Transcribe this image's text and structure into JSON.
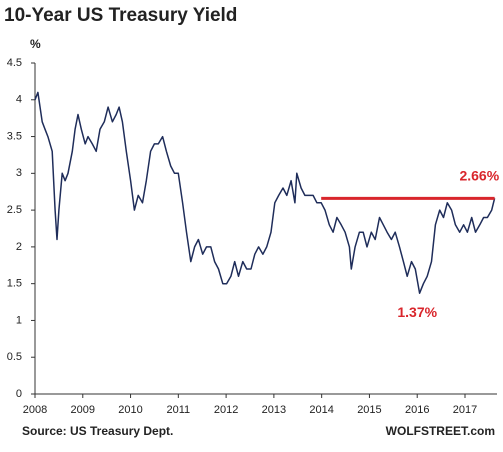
{
  "chart_data": {
    "type": "line",
    "title": "10-Year US Treasury Yield",
    "y_label": "%",
    "source": "Source: US Treasury Dept.",
    "credit": "WOLFSTREET.com",
    "series": [
      {
        "name": "10-Year US Treasury Yield",
        "color": "#1f2d5a",
        "x": [
          2008.0,
          2008.06,
          2008.15,
          2008.21,
          2008.27,
          2008.36,
          2008.42,
          2008.46,
          2008.5,
          2008.57,
          2008.63,
          2008.69,
          2008.78,
          2008.84,
          2008.9,
          2008.97,
          2009.05,
          2009.11,
          2009.2,
          2009.28,
          2009.36,
          2009.45,
          2009.53,
          2009.62,
          2009.7,
          2009.76,
          2009.83,
          2009.91,
          2010.0,
          2010.08,
          2010.16,
          2010.25,
          2010.33,
          2010.42,
          2010.5,
          2010.58,
          2010.67,
          2010.75,
          2010.84,
          2010.92,
          2011.0,
          2011.09,
          2011.17,
          2011.26,
          2011.34,
          2011.42,
          2011.51,
          2011.59,
          2011.68,
          2011.76,
          2011.84,
          2011.93,
          2012.01,
          2012.1,
          2012.18,
          2012.26,
          2012.35,
          2012.43,
          2012.52,
          2012.6,
          2012.68,
          2012.77,
          2012.85,
          2012.94,
          2013.02,
          2013.1,
          2013.19,
          2013.27,
          2013.36,
          2013.44,
          2013.48,
          2013.57,
          2013.65,
          2013.74,
          2013.82,
          2013.9,
          2013.99,
          2014.07,
          2014.16,
          2014.24,
          2014.32,
          2014.41,
          2014.49,
          2014.58,
          2014.62,
          2014.7,
          2014.79,
          2014.87,
          2014.95,
          2015.04,
          2015.12,
          2015.21,
          2015.29,
          2015.37,
          2015.46,
          2015.54,
          2015.63,
          2015.71,
          2015.79,
          2015.88,
          2015.96,
          2016.05,
          2016.13,
          2016.21,
          2016.3,
          2016.38,
          2016.47,
          2016.55,
          2016.63,
          2016.72,
          2016.8,
          2016.89,
          2016.97,
          2017.05,
          2017.14,
          2017.22,
          2017.31,
          2017.39,
          2017.47,
          2017.56,
          2017.62
        ],
        "values": [
          4.0,
          4.1,
          3.7,
          3.6,
          3.5,
          3.3,
          2.5,
          2.1,
          2.5,
          3.0,
          2.9,
          3.0,
          3.3,
          3.6,
          3.8,
          3.6,
          3.4,
          3.5,
          3.4,
          3.3,
          3.6,
          3.7,
          3.9,
          3.7,
          3.8,
          3.9,
          3.7,
          3.3,
          2.9,
          2.5,
          2.7,
          2.6,
          2.9,
          3.3,
          3.4,
          3.4,
          3.5,
          3.3,
          3.1,
          3.0,
          3.0,
          2.6,
          2.2,
          1.8,
          2.0,
          2.1,
          1.9,
          2.0,
          2.0,
          1.8,
          1.7,
          1.5,
          1.5,
          1.6,
          1.8,
          1.6,
          1.8,
          1.7,
          1.7,
          1.9,
          2.0,
          1.9,
          2.0,
          2.2,
          2.6,
          2.7,
          2.8,
          2.7,
          2.9,
          2.6,
          3.0,
          2.8,
          2.7,
          2.7,
          2.7,
          2.6,
          2.6,
          2.5,
          2.3,
          2.2,
          2.4,
          2.3,
          2.2,
          2.0,
          1.7,
          2.0,
          2.2,
          2.2,
          2.0,
          2.2,
          2.1,
          2.4,
          2.3,
          2.2,
          2.1,
          2.2,
          2.0,
          1.8,
          1.6,
          1.8,
          1.7,
          1.37,
          1.5,
          1.6,
          1.8,
          2.3,
          2.5,
          2.4,
          2.6,
          2.5,
          2.3,
          2.2,
          2.3,
          2.2,
          2.4,
          2.2,
          2.3,
          2.4,
          2.4,
          2.5,
          2.66
        ]
      }
    ],
    "hline": {
      "y": 2.66,
      "x": [
        2013.99,
        2017.62
      ],
      "color": "#d9262c"
    },
    "annotations": [
      {
        "text": "2.66%",
        "x": 2017.3,
        "y": 2.95,
        "color": "#d9262c"
      },
      {
        "text": "1.37%",
        "x": 2016.0,
        "y": 1.1,
        "color": "#d9262c"
      }
    ],
    "xlim": [
      2008,
      2017.67
    ],
    "xticks": [
      2008,
      2009,
      2010,
      2011,
      2012,
      2013,
      2014,
      2015,
      2016,
      2017
    ],
    "ylim": [
      0,
      4.5
    ],
    "yticks": [
      0,
      0.5,
      1,
      1.5,
      2,
      2.5,
      3,
      3.5,
      4,
      4.5
    ]
  }
}
